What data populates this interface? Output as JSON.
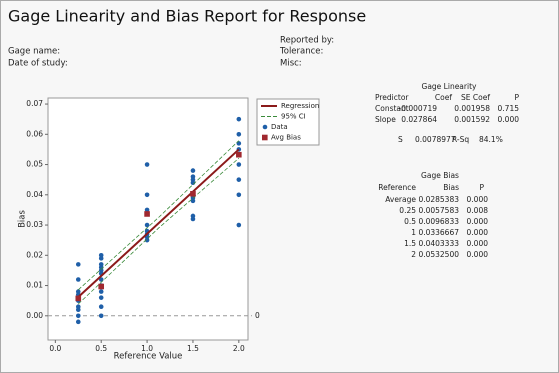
{
  "title": "Gage Linearity and Bias Report for Response",
  "info_left": [
    "Gage name:",
    "Date of study:"
  ],
  "info_right": [
    "Reported by:",
    "Tolerance:",
    "Misc:"
  ],
  "chart_data": {
    "type": "scatter",
    "x_label": "Reference Value",
    "y_label": "Bias",
    "xlim": [
      -0.08,
      2.1
    ],
    "ylim": [
      -0.008,
      0.072
    ],
    "xticks": [
      {
        "value": 0,
        "label": "0.0"
      },
      {
        "value": 0.5,
        "label": "0.5"
      },
      {
        "value": 1,
        "label": "1.0"
      },
      {
        "value": 1.5,
        "label": "1.5"
      },
      {
        "value": 2,
        "label": "2.0"
      }
    ],
    "yticks": [
      {
        "value": 0,
        "label": "0.00"
      },
      {
        "value": 0.01,
        "label": "0.01"
      },
      {
        "value": 0.02,
        "label": "0.02"
      },
      {
        "value": 0.03,
        "label": "0.03"
      },
      {
        "value": 0.04,
        "label": "0.04"
      },
      {
        "value": 0.05,
        "label": "0.05"
      },
      {
        "value": 0.06,
        "label": "0.06"
      },
      {
        "value": 0.07,
        "label": "0.07"
      }
    ],
    "reference_line": 0,
    "legend_position": "right",
    "series": [
      {
        "name": "Regression",
        "kind": "line",
        "color": "#8b1a1a",
        "x": [
          0.25,
          2.0
        ],
        "values": [
          0.0062,
          0.055
        ]
      },
      {
        "name": "95% CI",
        "kind": "dashed",
        "color": "#3a8a3a",
        "x": [
          0.25,
          1.125,
          2.0
        ],
        "values": [
          0.0086,
          0.0325,
          0.0579
        ],
        "values_lower": [
          0.0039,
          0.029,
          0.0521
        ]
      },
      {
        "name": "Data",
        "kind": "dot",
        "color": "#1f5fa8",
        "x": [
          0.25,
          0.25,
          0.25,
          0.25,
          0.25,
          0.25,
          0.25,
          0.25,
          0.25,
          0.5,
          0.5,
          0.5,
          0.5,
          0.5,
          0.5,
          0.5,
          0.5,
          0.5,
          0.5,
          0.5,
          0.5,
          1,
          1,
          1,
          1,
          1,
          1,
          1,
          1,
          1.5,
          1.5,
          1.5,
          1.5,
          1.5,
          1.5,
          1.5,
          1.5,
          1.5,
          2,
          2,
          2,
          2,
          2,
          2,
          2,
          2
        ],
        "values": [
          0.017,
          0.012,
          0.008,
          0.007,
          0.005,
          0.003,
          0.002,
          0,
          -0.002,
          0.02,
          0.019,
          0.017,
          0.016,
          0.015,
          0.014,
          0.012,
          0.01,
          0.008,
          0.006,
          0.003,
          0,
          0.05,
          0.04,
          0.035,
          0.03,
          0.028,
          0.027,
          0.026,
          0.025,
          0.048,
          0.046,
          0.045,
          0.044,
          0.04,
          0.039,
          0.038,
          0.033,
          0.032,
          0.065,
          0.06,
          0.057,
          0.055,
          0.05,
          0.045,
          0.04,
          0.03
        ]
      },
      {
        "name": "Avg Bias",
        "kind": "square",
        "color": "#a0282f",
        "x": [
          0.25,
          0.5,
          1,
          1.5,
          2
        ],
        "values": [
          0.0057583,
          0.0096833,
          0.0336667,
          0.0403333,
          0.05325
        ]
      }
    ]
  },
  "linearity_table": {
    "title": "Gage Linearity",
    "columns": [
      "Predictor",
      "Coef",
      "SE Coef",
      "P"
    ],
    "rows": [
      [
        "Constant",
        "-0.000719",
        "0.001958",
        "0.715"
      ],
      [
        "Slope",
        "0.027864",
        "0.001592",
        "0.000"
      ]
    ]
  },
  "fit": [
    "S",
    "0.0078977",
    "R-Sq",
    "84.1%"
  ],
  "bias_table": {
    "title": "Gage Bias",
    "columns": [
      "Reference",
      "Bias",
      "P"
    ],
    "rows": [
      [
        "Average",
        "0.0285383",
        "0.000"
      ],
      [
        "0.25",
        "0.0057583",
        "0.008"
      ],
      [
        "0.5",
        "0.0096833",
        "0.000"
      ],
      [
        "1",
        "0.0336667",
        "0.000"
      ],
      [
        "1.5",
        "0.0403333",
        "0.000"
      ],
      [
        "2",
        "0.0532500",
        "0.000"
      ]
    ]
  }
}
